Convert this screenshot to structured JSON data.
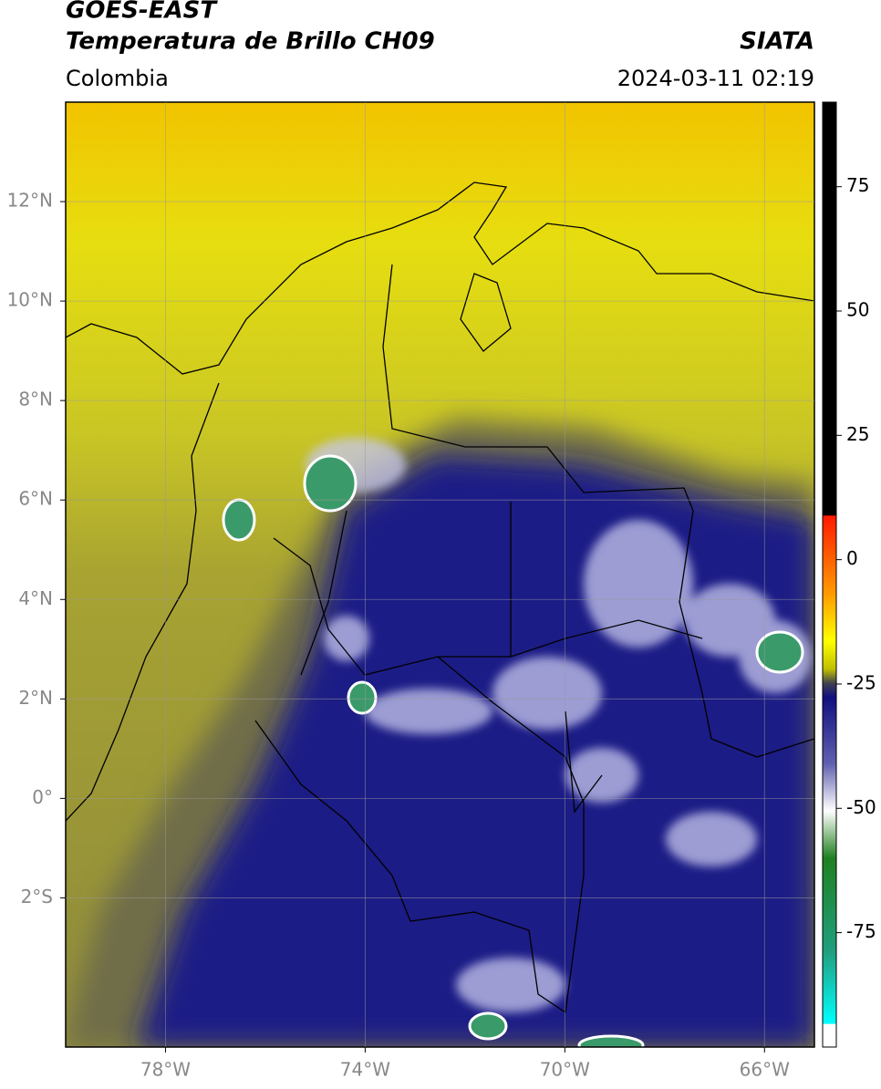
{
  "header": {
    "title": "GOES-EAST",
    "subtitle": "Temperatura de Brillo CH09",
    "source": "SIATA",
    "region": "Colombia",
    "datetime": "2024-03-11 02:19"
  },
  "map": {
    "lonlim": [
      -80,
      -65
    ],
    "latlim": [
      -5,
      14
    ],
    "grid": true,
    "lonticks": [
      {
        "value": -78,
        "label": "78°W"
      },
      {
        "value": -74,
        "label": "74°W"
      },
      {
        "value": -70,
        "label": "70°W"
      },
      {
        "value": -66,
        "label": "66°W"
      }
    ],
    "latticks": [
      {
        "value": 12,
        "label": "12°N"
      },
      {
        "value": 10,
        "label": "10°N"
      },
      {
        "value": 8,
        "label": "8°N"
      },
      {
        "value": 6,
        "label": "6°N"
      },
      {
        "value": 4,
        "label": "4°N"
      },
      {
        "value": 2,
        "label": "2°N"
      },
      {
        "value": 0,
        "label": "0°"
      },
      {
        "value": -2,
        "label": "2°S"
      }
    ]
  },
  "colorbar": {
    "lim": [
      -98,
      92
    ],
    "ticks": [
      75,
      50,
      25,
      0,
      -25,
      -50,
      -75
    ]
  }
}
